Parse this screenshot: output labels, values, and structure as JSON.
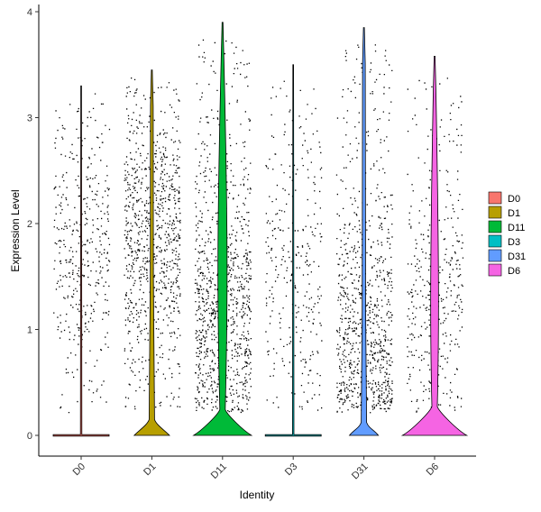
{
  "chart_data": {
    "type": "violin",
    "title": "",
    "xlabel": "Identity",
    "ylabel": "Expression Level",
    "ylim": [
      -0.2,
      4.05
    ],
    "yticks": [
      0,
      1,
      2,
      3,
      4
    ],
    "grid": false,
    "legend_position": "right",
    "categories": [
      "D0",
      "D1",
      "D11",
      "D3",
      "D31",
      "D6"
    ],
    "series": [
      {
        "name": "D0",
        "color": "#F8766D",
        "max": 3.3,
        "zero_fraction_width": 0.02,
        "point_center": 1.8,
        "point_density": 0.45
      },
      {
        "name": "D1",
        "color": "#B79F00",
        "max": 3.45,
        "zero_fraction_width": 0.55,
        "point_center": 1.9,
        "point_density": 1.0
      },
      {
        "name": "D11",
        "color": "#00BA38",
        "max": 3.9,
        "zero_fraction_width": 0.9,
        "point_center": 1.1,
        "point_density": 1.1
      },
      {
        "name": "D3",
        "color": "#00BFC4",
        "max": 3.5,
        "zero_fraction_width": 0.02,
        "point_center": 1.5,
        "point_density": 0.35
      },
      {
        "name": "D31",
        "color": "#619CFF",
        "max": 3.85,
        "zero_fraction_width": 0.45,
        "point_center": 0.8,
        "point_density": 1.0
      },
      {
        "name": "D6",
        "color": "#F564E3",
        "max": 3.58,
        "zero_fraction_width": 1.0,
        "point_center": 1.3,
        "point_density": 0.45
      }
    ]
  }
}
